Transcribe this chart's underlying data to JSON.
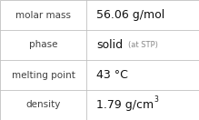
{
  "rows": [
    {
      "label": "molar mass",
      "value": "56.06 g/mol",
      "value_extra": null,
      "value_superscript": null
    },
    {
      "label": "phase",
      "value": "solid",
      "value_extra": "(at STP)",
      "value_superscript": null
    },
    {
      "label": "melting point",
      "value": "43 °C",
      "value_extra": null,
      "value_superscript": null
    },
    {
      "label": "density",
      "value": "1.79 g/cm",
      "value_superscript": "3",
      "value_extra": null
    }
  ],
  "border_color": "#c0c0c0",
  "bg_color": "#ffffff",
  "label_color": "#404040",
  "value_color": "#111111",
  "extra_color": "#888888",
  "label_fontsize": 7.5,
  "value_fontsize": 9.0,
  "extra_fontsize": 6.0,
  "super_fontsize": 5.5,
  "col_split": 0.435
}
